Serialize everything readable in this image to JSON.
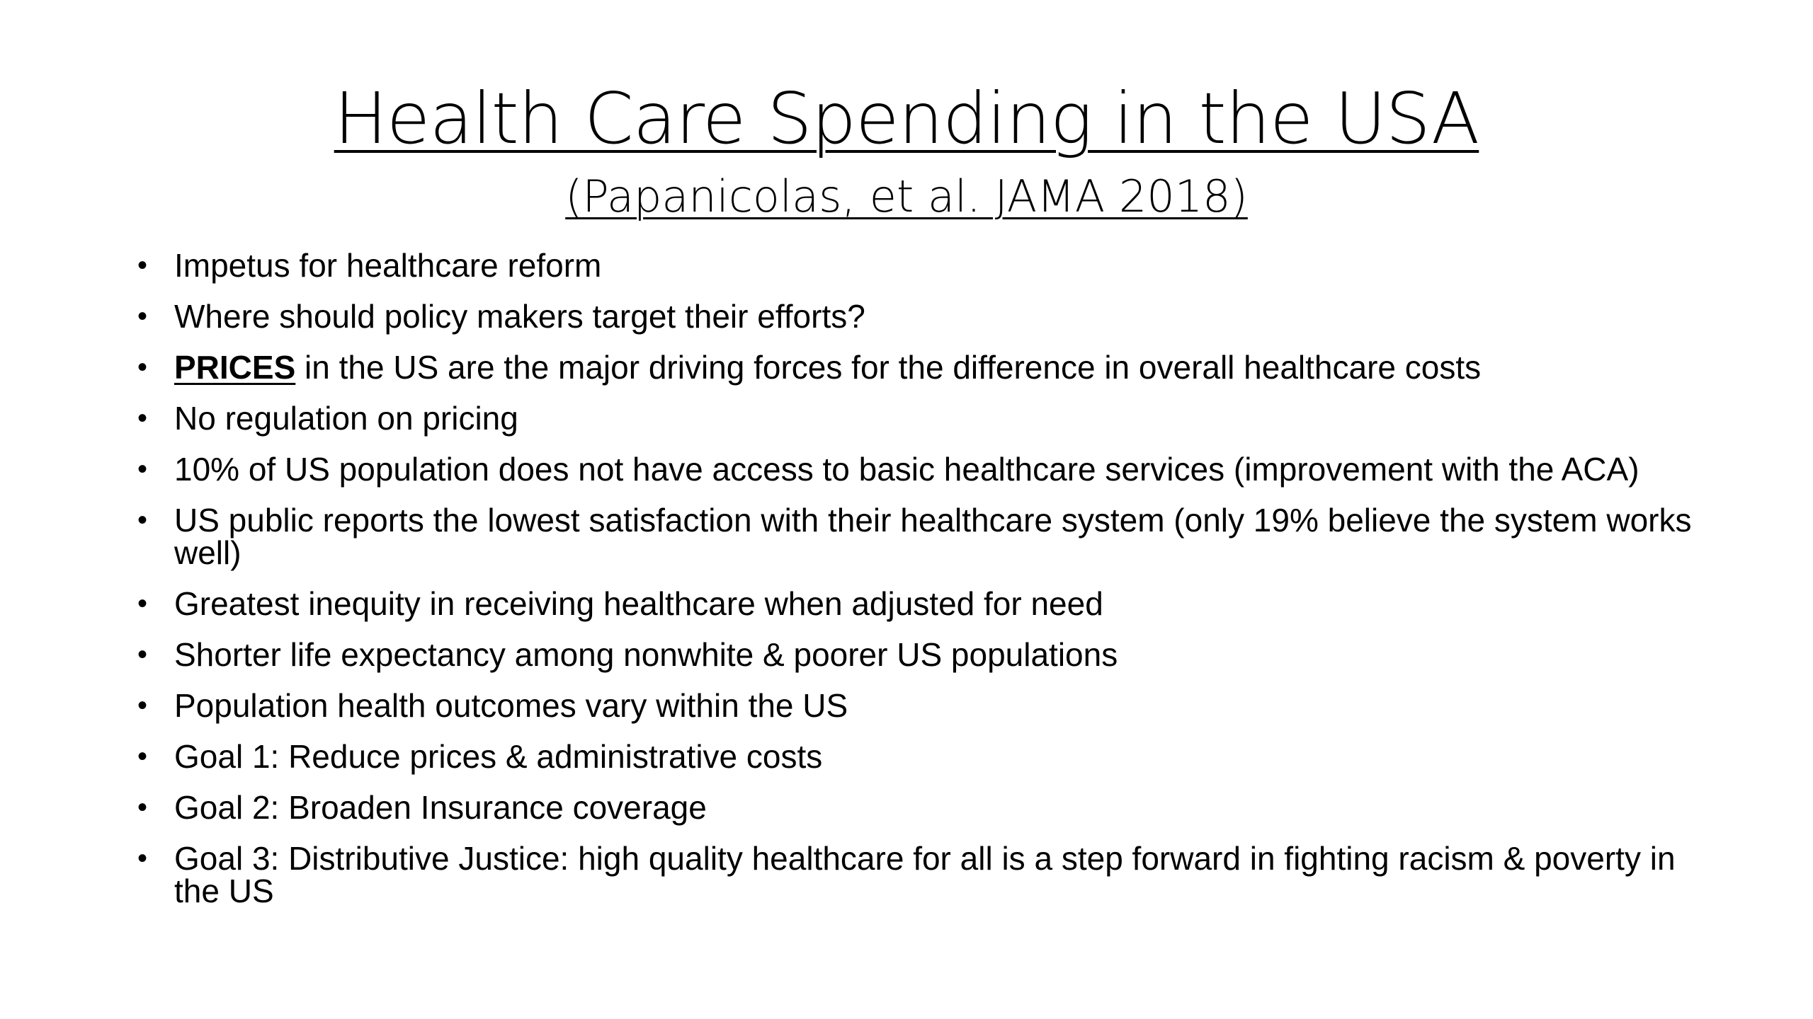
{
  "slide": {
    "title": "Health Care Spending in the USA",
    "subtitle": "(Papanicolas, et al. JAMA 2018)",
    "bullets": [
      {
        "lead": "",
        "text": "Impetus for healthcare reform"
      },
      {
        "lead": "",
        "text": "Where should policy makers target their efforts?"
      },
      {
        "lead": "PRICES",
        "text": " in the US are the major driving forces for the difference in overall healthcare costs"
      },
      {
        "lead": "",
        "text": "No regulation on pricing"
      },
      {
        "lead": "",
        "text": "10% of US population does not have access to basic healthcare services (improvement with the ACA)"
      },
      {
        "lead": "",
        "text": "US public reports the lowest satisfaction with their healthcare system (only 19% believe the system works well)"
      },
      {
        "lead": "",
        "text": "Greatest inequity in receiving healthcare when adjusted for need"
      },
      {
        "lead": "",
        "text": "Shorter life expectancy among nonwhite & poorer US populations"
      },
      {
        "lead": "",
        "text": "Population health outcomes vary within the US"
      },
      {
        "lead": "",
        "text": "Goal 1: Reduce prices & administrative costs"
      },
      {
        "lead": "",
        "text": "Goal 2: Broaden Insurance coverage"
      },
      {
        "lead": "",
        "text": "Goal 3: Distributive Justice: high quality healthcare for all is a step forward in fighting racism & poverty in the US"
      }
    ]
  }
}
